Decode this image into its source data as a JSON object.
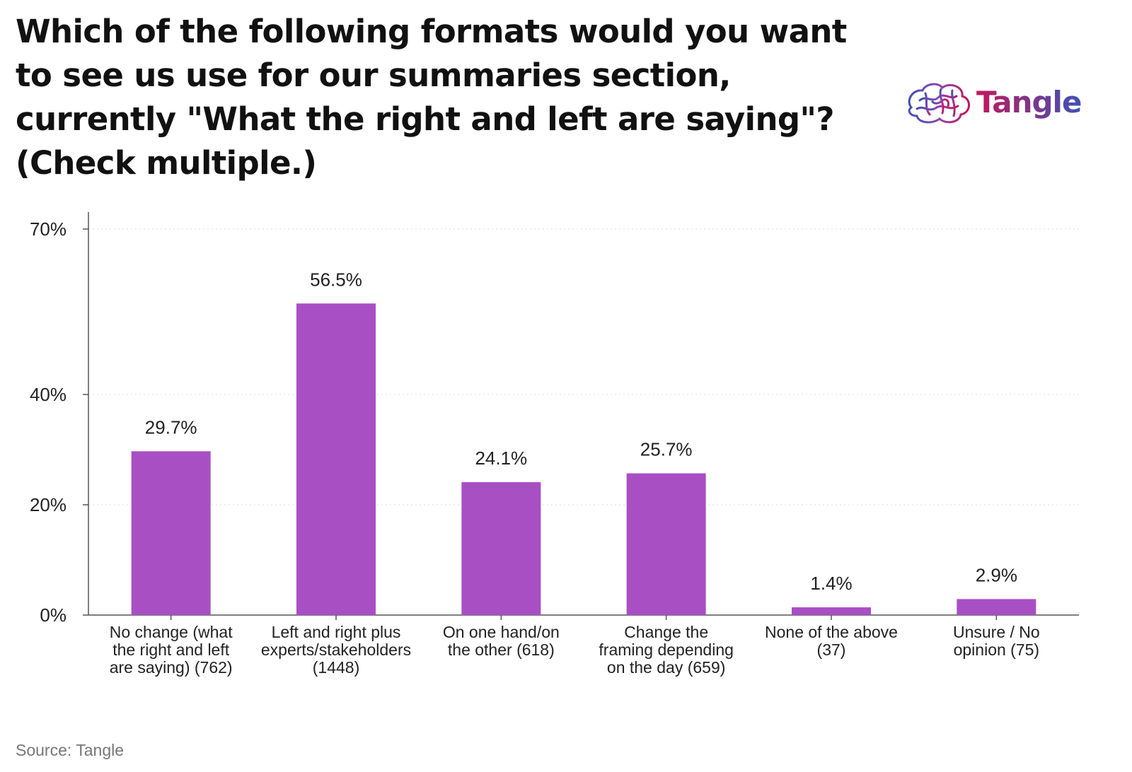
{
  "title": "Which of the following formats would you want to see us use for our summaries section, currently \"What the right and left are saying\"? (Check multiple.)",
  "logo": {
    "text": "Tangle",
    "icon": "tangle-brain-icon"
  },
  "source": "Source: Tangle",
  "colors": {
    "bar": "#a84fc4",
    "axis": "#555555",
    "grid": "#dddddd",
    "logo_start": "#c2185b",
    "logo_end": "#3f51b5"
  },
  "chart_data": {
    "type": "bar",
    "categories": [
      [
        "No change (what",
        "the right and left",
        "are saying) (762)"
      ],
      [
        "Left and right plus",
        "experts/stakeholders",
        "(1448)"
      ],
      [
        "On one hand/on",
        "the other (618)"
      ],
      [
        "Change the",
        "framing depending",
        "on the day (659)"
      ],
      [
        "None of the above",
        "(37)"
      ],
      [
        "Unsure / No",
        "opinion (75)"
      ]
    ],
    "values": [
      29.7,
      56.5,
      24.1,
      25.7,
      1.4,
      2.9
    ],
    "value_labels": [
      "29.7%",
      "56.5%",
      "24.1%",
      "25.7%",
      "1.4%",
      "2.9%"
    ],
    "y_ticks": [
      0,
      20,
      40,
      70
    ],
    "y_tick_labels": [
      "0%",
      "20%",
      "40%",
      "70%"
    ],
    "ylim": [
      0,
      70
    ],
    "grid": true
  }
}
